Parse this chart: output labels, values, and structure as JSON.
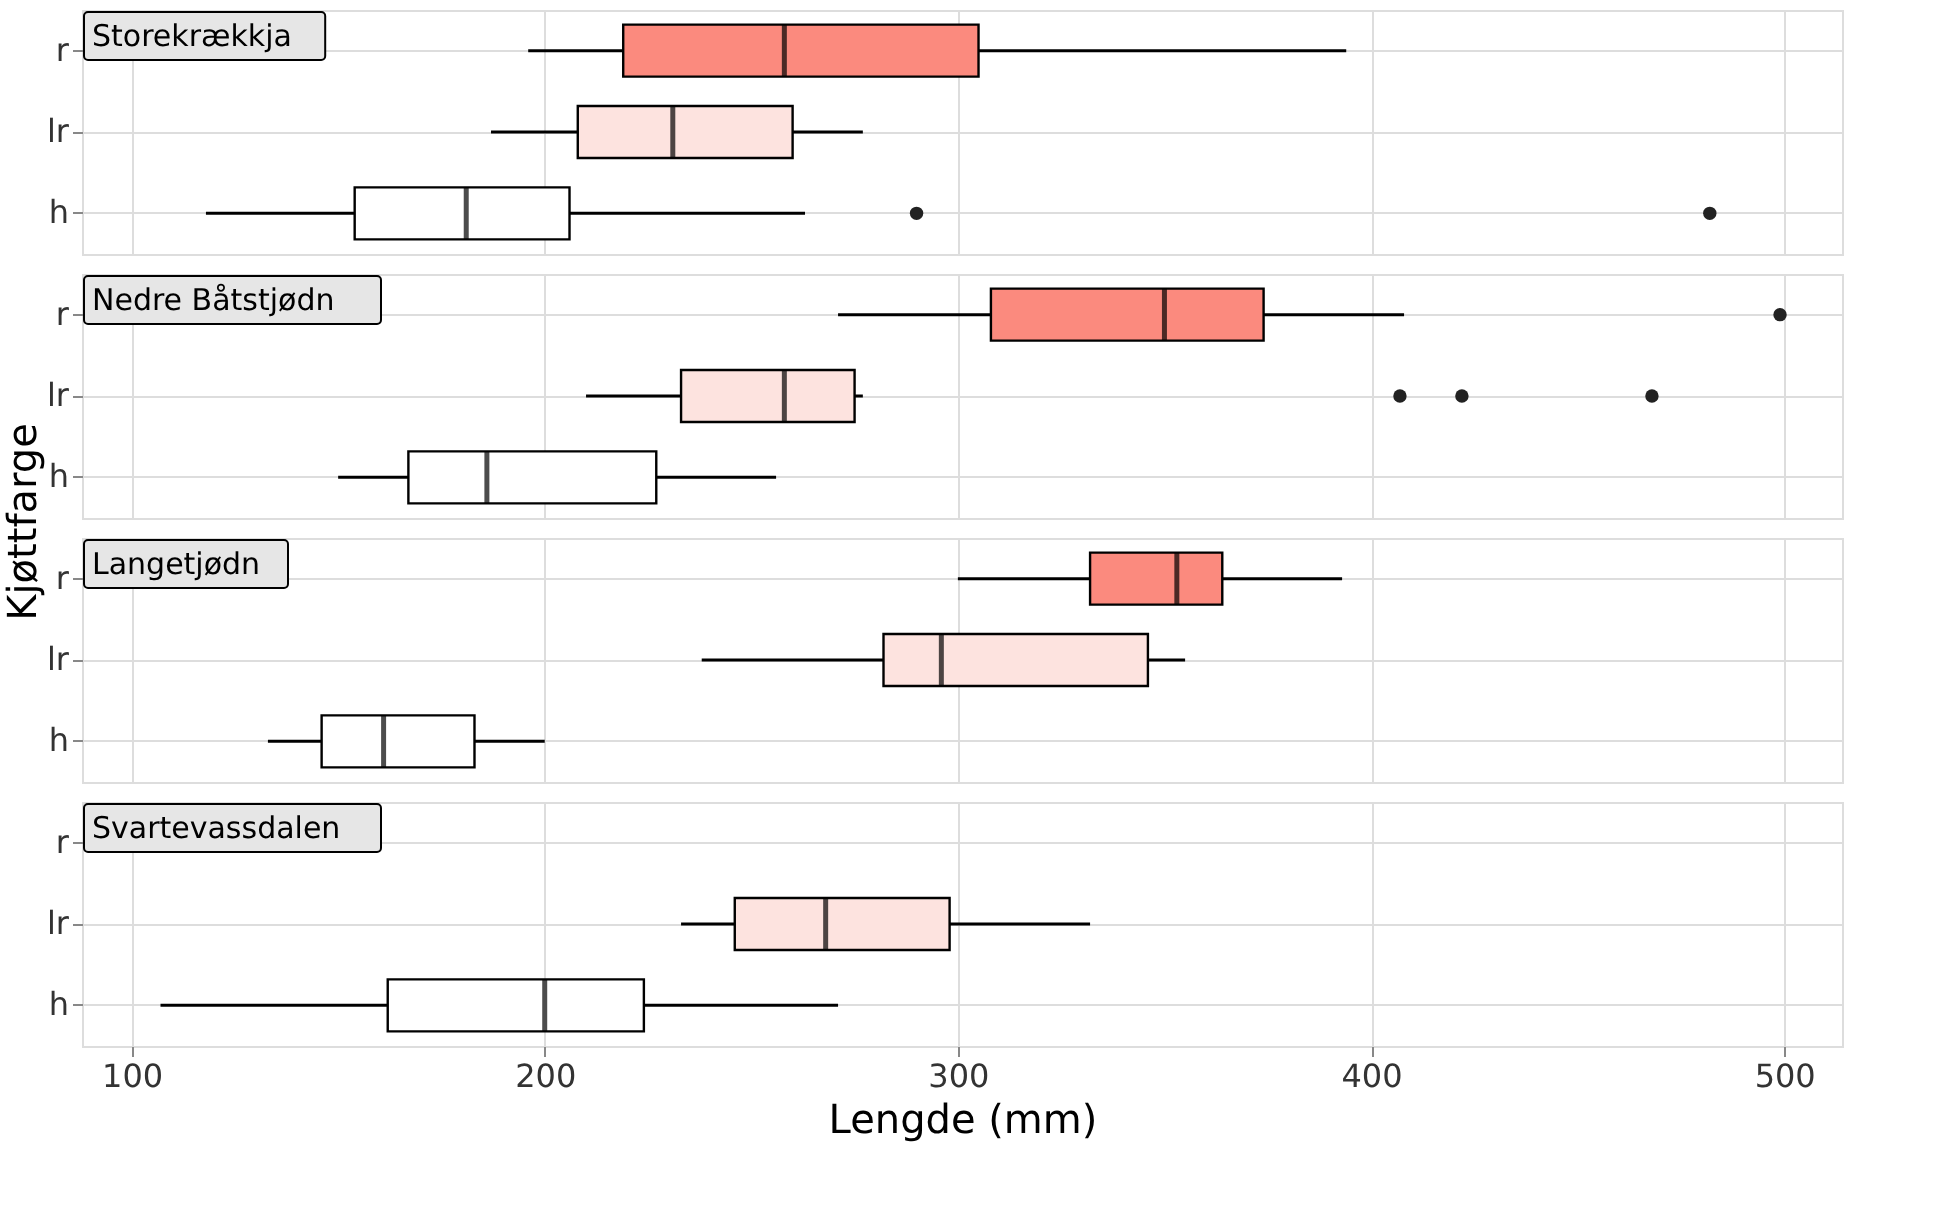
{
  "chart_data": [
    {
      "type": "box",
      "orientation": "horizontal",
      "title": "Storekrækkja",
      "ylabel": "Kjøttfarge",
      "categories": [
        "r",
        "lr",
        "h"
      ],
      "colors": [
        "#fb8a7e",
        "#fde3df",
        "#ffffff"
      ],
      "boxes": [
        {
          "low": 196,
          "q1": 219,
          "median": 258,
          "q3": 305,
          "high": 394
        },
        {
          "low": 187,
          "q1": 208,
          "median": 231,
          "q3": 260,
          "high": 277
        },
        {
          "low": 118,
          "q1": 154,
          "median": 181,
          "q3": 206,
          "high": 263,
          "outliers": [
            290,
            482
          ]
        }
      ],
      "xlim": [
        88,
        514
      ],
      "xticks": [
        100,
        200,
        300,
        400,
        500
      ],
      "grid": true,
      "tick_labels": "y"
    },
    {
      "type": "box",
      "orientation": "horizontal",
      "title": "Nedre Båtstjødn",
      "categories": [
        "r",
        "lr",
        "h"
      ],
      "colors": [
        "#fb8a7e",
        "#fde3df",
        "#ffffff"
      ],
      "boxes": [
        {
          "low": 271,
          "q1": 308,
          "median": 350,
          "q3": 374,
          "high": 408,
          "outliers": [
            499
          ]
        },
        {
          "low": 210,
          "q1": 233,
          "median": 258,
          "q3": 275,
          "high": 277,
          "outliers": [
            407,
            422,
            468
          ]
        },
        {
          "low": 150,
          "q1": 167,
          "median": 186,
          "q3": 227,
          "high": 256
        }
      ],
      "xlim": [
        88,
        514
      ],
      "xticks": [
        100,
        200,
        300,
        400,
        500
      ],
      "grid": true,
      "tick_labels": "y"
    },
    {
      "type": "box",
      "orientation": "horizontal",
      "title": "Langetjødn",
      "categories": [
        "r",
        "lr",
        "h"
      ],
      "colors": [
        "#fb8a7e",
        "#fde3df",
        "#ffffff"
      ],
      "boxes": [
        {
          "low": 300,
          "q1": 332,
          "median": 353,
          "q3": 364,
          "high": 393
        },
        {
          "low": 238,
          "q1": 282,
          "median": 296,
          "q3": 346,
          "high": 355
        },
        {
          "low": 133,
          "q1": 146,
          "median": 161,
          "q3": 183,
          "high": 200
        }
      ],
      "xlim": [
        88,
        514
      ],
      "xticks": [
        100,
        200,
        300,
        400,
        500
      ],
      "grid": true,
      "tick_labels": "y"
    },
    {
      "type": "box",
      "orientation": "horizontal",
      "title": "Svartevassdalen",
      "xlabel": "Lengde (mm)",
      "categories": [
        "r",
        "lr",
        "h"
      ],
      "colors": [
        "#fb8a7e",
        "#fde3df",
        "#ffffff"
      ],
      "boxes": [
        null,
        {
          "low": 233,
          "q1": 246,
          "median": 268,
          "q3": 298,
          "high": 332
        },
        {
          "low": 107,
          "q1": 162,
          "median": 200,
          "q3": 224,
          "high": 271
        }
      ],
      "xlim": [
        88,
        514
      ],
      "xticks": [
        100,
        200,
        300,
        400,
        500
      ],
      "grid": true
    }
  ]
}
